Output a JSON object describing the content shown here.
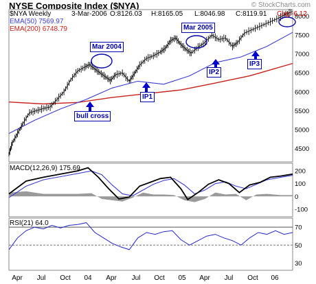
{
  "watermark": "© StockCharts.com",
  "chart_data": [
    {
      "type": "line",
      "title": "NYSE Composite Index ($NYA)",
      "header": {
        "symbol": "$NYA Weekly",
        "date": "3-Mar-2006",
        "open": "O:8126.03",
        "high": "H:8165.05",
        "low": "L:8046.98",
        "close": "C:8119.91",
        "change": "Chg:-6.12"
      },
      "yticks": [
        4500,
        5000,
        5500,
        6000,
        6500,
        7000,
        7500,
        8000
      ],
      "ylim": [
        4150,
        8170
      ],
      "xticks": [
        "Apr",
        "Jul",
        "Oct",
        "04",
        "Apr",
        "Jul",
        "Oct",
        "05",
        "Apr",
        "Jul",
        "Oct",
        "06"
      ],
      "grid": true,
      "colors": {
        "price": "#000000",
        "ema50": "#3b3bd6",
        "ema200": "#c8201a",
        "annotation": "#0000aa"
      },
      "series": [
        {
          "name": "EMA(50) 7569.97",
          "values": [
            [
              0,
              4900
            ],
            [
              15,
              5250
            ],
            [
              30,
              5550
            ],
            [
              45,
              5800
            ],
            [
              60,
              6100
            ],
            [
              75,
              6280
            ],
            [
              90,
              6200
            ],
            [
              105,
              6420
            ],
            [
              120,
              6770
            ],
            [
              135,
              6920
            ],
            [
              150,
              7200
            ],
            [
              165,
              7569
            ]
          ]
        },
        {
          "name": "EMA(200) 6748.79",
          "values": [
            [
              0,
              5730
            ],
            [
              20,
              5680
            ],
            [
              40,
              5720
            ],
            [
              60,
              5850
            ],
            [
              80,
              5950
            ],
            [
              100,
              6050
            ],
            [
              120,
              6230
            ],
            [
              140,
              6420
            ],
            [
              165,
              6748
            ]
          ]
        },
        {
          "name": "Price",
          "values": [
            [
              0,
              4350
            ],
            [
              2,
              4650
            ],
            [
              5,
              4900
            ],
            [
              8,
              5150
            ],
            [
              12,
              5450
            ],
            [
              16,
              5500
            ],
            [
              20,
              5560
            ],
            [
              24,
              5600
            ],
            [
              28,
              5800
            ],
            [
              32,
              6000
            ],
            [
              36,
              6320
            ],
            [
              40,
              6550
            ],
            [
              44,
              6650
            ],
            [
              47,
              6720
            ],
            [
              50,
              6600
            ],
            [
              53,
              6500
            ],
            [
              56,
              6400
            ],
            [
              59,
              6300
            ],
            [
              62,
              6450
            ],
            [
              66,
              6500
            ],
            [
              70,
              6280
            ],
            [
              73,
              6480
            ],
            [
              76,
              6700
            ],
            [
              80,
              6880
            ],
            [
              84,
              6950
            ],
            [
              88,
              7050
            ],
            [
              91,
              7150
            ],
            [
              94,
              7350
            ],
            [
              97,
              7420
            ],
            [
              100,
              7250
            ],
            [
              103,
              7120
            ],
            [
              106,
              7020
            ],
            [
              110,
              7180
            ],
            [
              114,
              7300
            ],
            [
              118,
              7500
            ],
            [
              122,
              7380
            ],
            [
              126,
              7420
            ],
            [
              130,
              7200
            ],
            [
              133,
              7300
            ],
            [
              137,
              7550
            ],
            [
              142,
              7650
            ],
            [
              147,
              7750
            ],
            [
              152,
              7850
            ],
            [
              157,
              7950
            ],
            [
              161,
              8050
            ],
            [
              165,
              8120
            ]
          ]
        }
      ],
      "annotations": [
        {
          "label": "Mar 2004",
          "x": 47,
          "y": 7300
        },
        {
          "label": "Mar 2005",
          "x": 97,
          "y": 7950
        },
        {
          "label": "IP1",
          "x": 70,
          "y": 5780
        },
        {
          "label": "IP2",
          "x": 110,
          "y": 6720
        },
        {
          "label": "IP3",
          "x": 137,
          "y": 7060
        },
        {
          "label": "bull cross",
          "x": 30,
          "y": 5300
        }
      ]
    },
    {
      "type": "line",
      "title": "MACD(12,26,9) 175.69",
      "yticks": [
        -100,
        0,
        100,
        200
      ],
      "ylim": [
        -160,
        260
      ],
      "series": [
        {
          "name": "MACD",
          "values": [
            [
              0,
              20
            ],
            [
              10,
              120
            ],
            [
              20,
              150
            ],
            [
              30,
              175
            ],
            [
              40,
              200
            ],
            [
              46,
              225
            ],
            [
              52,
              150
            ],
            [
              58,
              60
            ],
            [
              64,
              -20
            ],
            [
              70,
              -5
            ],
            [
              76,
              80
            ],
            [
              82,
              110
            ],
            [
              88,
              140
            ],
            [
              94,
              150
            ],
            [
              100,
              60
            ],
            [
              104,
              -25
            ],
            [
              110,
              30
            ],
            [
              116,
              95
            ],
            [
              122,
              130
            ],
            [
              128,
              100
            ],
            [
              134,
              30
            ],
            [
              140,
              90
            ],
            [
              146,
              110
            ],
            [
              152,
              150
            ],
            [
              158,
              160
            ],
            [
              165,
              175
            ]
          ]
        },
        {
          "name": "Signal",
          "values": [
            [
              0,
              -10
            ],
            [
              10,
              80
            ],
            [
              20,
              130
            ],
            [
              30,
              155
            ],
            [
              40,
              180
            ],
            [
              48,
              200
            ],
            [
              54,
              170
            ],
            [
              60,
              90
            ],
            [
              66,
              20
            ],
            [
              72,
              5
            ],
            [
              78,
              50
            ],
            [
              84,
              95
            ],
            [
              90,
              125
            ],
            [
              96,
              140
            ],
            [
              102,
              90
            ],
            [
              108,
              20
            ],
            [
              114,
              50
            ],
            [
              120,
              100
            ],
            [
              126,
              115
            ],
            [
              132,
              80
            ],
            [
              138,
              60
            ],
            [
              144,
              95
            ],
            [
              150,
              130
            ],
            [
              158,
              150
            ],
            [
              165,
              165
            ]
          ]
        },
        {
          "name": "Histogram",
          "values": [
            [
              0,
              30
            ],
            [
              10,
              40
            ],
            [
              20,
              20
            ],
            [
              30,
              20
            ],
            [
              40,
              20
            ],
            [
              48,
              25
            ],
            [
              54,
              -20
            ],
            [
              60,
              -30
            ],
            [
              66,
              -40
            ],
            [
              72,
              -10
            ],
            [
              78,
              30
            ],
            [
              84,
              15
            ],
            [
              90,
              15
            ],
            [
              96,
              10
            ],
            [
              102,
              -30
            ],
            [
              108,
              -45
            ],
            [
              114,
              -20
            ],
            [
              120,
              30
            ],
            [
              126,
              15
            ],
            [
              132,
              20
            ],
            [
              138,
              -30
            ],
            [
              144,
              15
            ],
            [
              150,
              20
            ],
            [
              158,
              10
            ],
            [
              165,
              10
            ]
          ]
        }
      ]
    },
    {
      "type": "line",
      "title": "RSI(21) 64.0",
      "yticks": [
        30,
        50,
        70
      ],
      "ylim": [
        22,
        80
      ],
      "series": [
        {
          "name": "RSI",
          "values": [
            [
              0,
              45
            ],
            [
              5,
              58
            ],
            [
              10,
              66
            ],
            [
              15,
              70
            ],
            [
              20,
              68
            ],
            [
              25,
              72
            ],
            [
              30,
              69
            ],
            [
              35,
              72
            ],
            [
              40,
              73
            ],
            [
              45,
              75
            ],
            [
              50,
              64
            ],
            [
              55,
              58
            ],
            [
              60,
              52
            ],
            [
              65,
              48
            ],
            [
              70,
              45
            ],
            [
              75,
              58
            ],
            [
              80,
              64
            ],
            [
              85,
              62
            ],
            [
              90,
              65
            ],
            [
              95,
              66
            ],
            [
              100,
              56
            ],
            [
              105,
              50
            ],
            [
              110,
              55
            ],
            [
              115,
              60
            ],
            [
              120,
              62
            ],
            [
              125,
              58
            ],
            [
              130,
              55
            ],
            [
              135,
              50
            ],
            [
              140,
              58
            ],
            [
              145,
              64
            ],
            [
              150,
              62
            ],
            [
              155,
              66
            ],
            [
              160,
              62
            ],
            [
              165,
              64
            ]
          ]
        }
      ]
    }
  ]
}
